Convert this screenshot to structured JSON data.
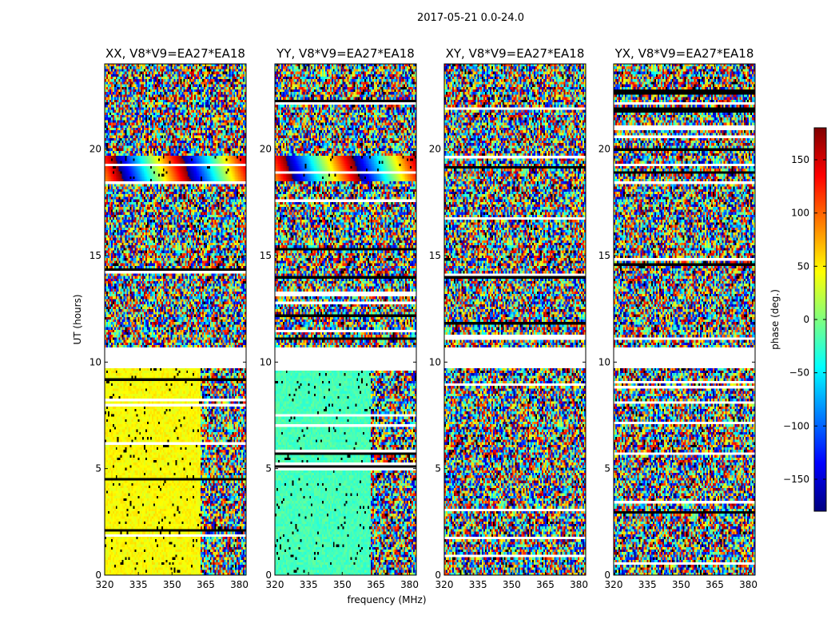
{
  "figure": {
    "suptitle": "2017-05-21 0.0-24.0",
    "xlabel": "frequency (MHz)",
    "ylabel": "UT (hours)"
  },
  "colorbar": {
    "label": "phase (deg.)",
    "min": -180,
    "max": 180,
    "ticks": [
      -150,
      -100,
      -50,
      0,
      50,
      100,
      150
    ],
    "tick_labels": [
      "−150",
      "−100",
      "−50",
      "0",
      "50",
      "100",
      "150"
    ],
    "colormap": "jet",
    "stops": [
      "#00007f",
      "#0000ff",
      "#007fff",
      "#00ffff",
      "#7fff7f",
      "#ffff00",
      "#ff7f00",
      "#ff0000",
      "#7f0000"
    ]
  },
  "chart_data": [
    {
      "type": "heatmap",
      "title": "XX, V8*V9=EA27*EA18",
      "xlim": [
        320,
        383
      ],
      "ylim": [
        0,
        24
      ],
      "xticks": [
        320,
        335,
        350,
        365,
        380
      ],
      "yticks": [
        0,
        5,
        10,
        15,
        20
      ],
      "blank_hours": [
        [
          9.7,
          10.7
        ]
      ],
      "coherent_region": {
        "hours": [
          0,
          9.7
        ],
        "freq_range": [
          320,
          363
        ],
        "phase_deg": 45,
        "description": "near-constant phase"
      },
      "fringe_band": {
        "hours": [
          18.5,
          19.7
        ],
        "description": "phase wrapping fringes"
      }
    },
    {
      "type": "heatmap",
      "title": "YY, V8*V9=EA27*EA18",
      "xlim": [
        320,
        383
      ],
      "ylim": [
        0,
        24
      ],
      "xticks": [
        320,
        335,
        350,
        365,
        380
      ],
      "yticks": [
        0,
        5,
        10,
        15,
        20
      ],
      "blank_hours": [
        [
          9.7,
          10.7
        ]
      ],
      "coherent_region": {
        "hours": [
          0,
          9.7
        ],
        "freq_range": [
          320,
          363
        ],
        "phase_deg": -20,
        "description": "near-constant phase"
      },
      "fringe_band": {
        "hours": [
          18.5,
          19.7
        ],
        "description": "phase wrapping fringes"
      }
    },
    {
      "type": "heatmap",
      "title": "XY, V8*V9=EA27*EA18",
      "xlim": [
        320,
        383
      ],
      "ylim": [
        0,
        24
      ],
      "xticks": [
        320,
        335,
        350,
        365,
        380
      ],
      "yticks": [
        0,
        5,
        10,
        15,
        20
      ],
      "blank_hours": [
        [
          9.7,
          10.7
        ]
      ],
      "coherent_region": null,
      "fringe_band": null
    },
    {
      "type": "heatmap",
      "title": "YX, V8*V9=EA27*EA18",
      "xlim": [
        320,
        383
      ],
      "ylim": [
        0,
        24
      ],
      "xticks": [
        320,
        335,
        350,
        365,
        380
      ],
      "yticks": [
        0,
        5,
        10,
        15,
        20
      ],
      "blank_hours": [
        [
          9.7,
          10.7
        ]
      ],
      "coherent_region": null,
      "fringe_band": null
    }
  ]
}
